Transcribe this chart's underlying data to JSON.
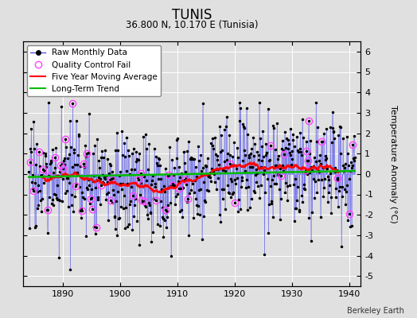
{
  "title": "TUNIS",
  "subtitle": "36.800 N, 10.170 E (Tunisia)",
  "credit": "Berkeley Earth",
  "ylabel": "Temperature Anomaly (°C)",
  "ylim": [
    -5.5,
    6.5
  ],
  "yticks": [
    -5,
    -4,
    -3,
    -2,
    -1,
    0,
    1,
    2,
    3,
    4,
    5,
    6
  ],
  "xlim": [
    1883,
    1942
  ],
  "xticks": [
    1890,
    1900,
    1910,
    1920,
    1930,
    1940
  ],
  "start_year": 1884,
  "end_year": 1940,
  "bar_color": "#5555ee",
  "bar_alpha": 0.55,
  "dot_color": "#000000",
  "qc_color": "#ff44ff",
  "moving_avg_color": "#ff0000",
  "trend_color": "#00bb00",
  "background_color": "#e0e0e0",
  "grid_color": "#ffffff",
  "title_fontsize": 12,
  "subtitle_fontsize": 8.5,
  "tick_fontsize": 8,
  "legend_fontsize": 7.5,
  "seed": 17
}
